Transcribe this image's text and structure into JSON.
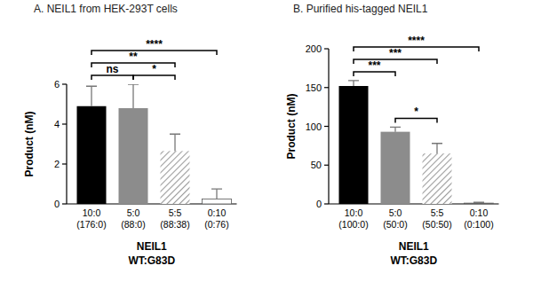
{
  "chart_data": [
    {
      "type": "bar",
      "title": "A. NEIL1 from HEK-293T cells",
      "y_label": "Product (nM)",
      "x_label": "NEIL1\nWT:G83D",
      "categories": [
        "10:0\n(176:0)",
        "5:0\n(88:0)",
        "5:5\n(88:38)",
        "0:10\n(0:76)"
      ],
      "values": [
        4.9,
        4.8,
        2.65,
        0.25
      ],
      "errors": [
        1.0,
        1.2,
        0.85,
        0.5
      ],
      "colors": [
        "#000000",
        "#8c8c8c",
        "#9a9a9a",
        "#ffffff"
      ],
      "ylim": [
        0,
        6
      ],
      "yticks": [
        0,
        2,
        4,
        6
      ],
      "significance": [
        {
          "from": "10:0\n(176:0)",
          "to": "5:0\n(88:0)",
          "label": "ns"
        },
        {
          "from": "5:0\n(88:0)",
          "to": "5:5\n(88:38)",
          "label": "*"
        },
        {
          "from": "10:0\n(176:0)",
          "to": "5:5\n(88:38)",
          "label": "**"
        },
        {
          "from": "10:0\n(176:0)",
          "to": "0:10\n(0:76)",
          "label": "****"
        }
      ]
    },
    {
      "type": "bar",
      "title": "B. Purified his-tagged NEIL1",
      "y_label": "Product (nM)",
      "x_label": "NEIL1\nWT:G83D",
      "categories": [
        "10:0\n(100:0)",
        "5:0\n(50:0)",
        "5:5\n(50:50)",
        "0:10\n(0:100)"
      ],
      "values": [
        152,
        93,
        65,
        1
      ],
      "errors": [
        7,
        6,
        13,
        1
      ],
      "colors": [
        "#000000",
        "#8c8c8c",
        "#9a9a9a",
        "#ffffff"
      ],
      "ylim": [
        0,
        200
      ],
      "yticks": [
        0,
        50,
        100,
        150,
        200
      ],
      "significance": [
        {
          "from": "10:0\n(100:0)",
          "to": "5:0\n(50:0)",
          "label": "***"
        },
        {
          "from": "5:0\n(50:0)",
          "to": "5:5\n(50:50)",
          "label": "*"
        },
        {
          "from": "10:0\n(100:0)",
          "to": "5:5\n(50:50)",
          "label": "***"
        },
        {
          "from": "10:0\n(100:0)",
          "to": "0:10\n(0:100)",
          "label": "****"
        }
      ]
    }
  ]
}
